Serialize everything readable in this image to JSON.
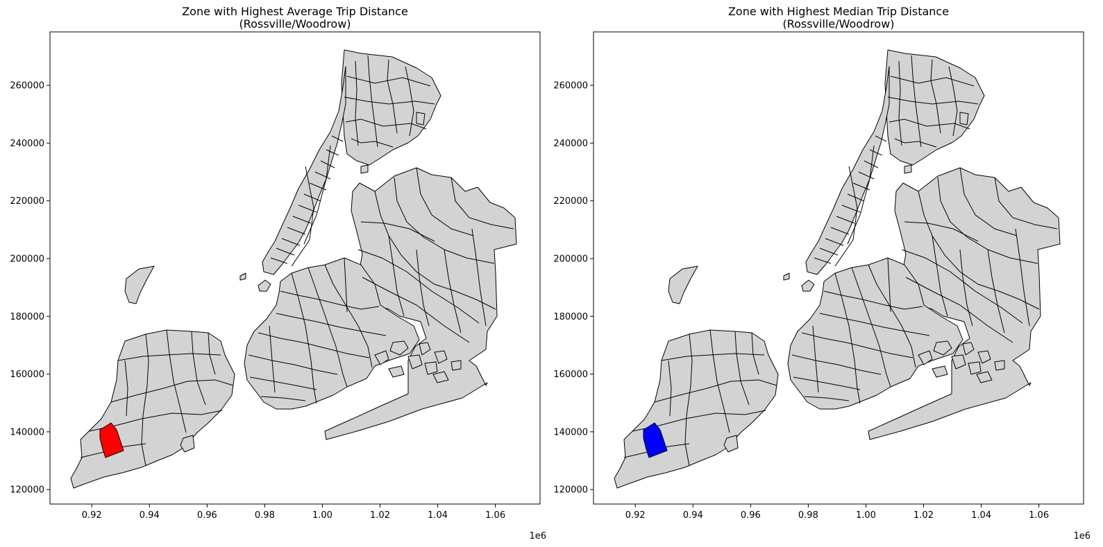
{
  "figure": {
    "offset_label": "1e6"
  },
  "panels": [
    {
      "title_line1": "Zone with Highest Average Trip Distance",
      "title_line2": "(Rossville/Woodrow)",
      "highlight_color": "#ff0000"
    },
    {
      "title_line1": "Zone with Highest Median Trip Distance",
      "title_line2": "(Rossville/Woodrow)",
      "highlight_color": "#0000ff"
    }
  ],
  "axes": {
    "x_ticks": [
      "0.92",
      "0.94",
      "0.96",
      "0.98",
      "1.00",
      "1.02",
      "1.04",
      "1.06"
    ],
    "y_ticks": [
      "120000",
      "140000",
      "160000",
      "180000",
      "200000",
      "220000",
      "240000",
      "260000"
    ],
    "x_tick_values": [
      0.92,
      0.94,
      0.96,
      0.98,
      1.0,
      1.02,
      1.04,
      1.06
    ],
    "y_tick_values": [
      120000,
      140000,
      160000,
      180000,
      200000,
      220000,
      240000,
      260000
    ],
    "xlim": [
      0.9055,
      1.0755
    ],
    "ylim": [
      115000,
      278500
    ]
  },
  "colors": {
    "zone_fill": "#d3d3d3",
    "zone_edge": "#000000",
    "background": "#ffffff"
  }
}
